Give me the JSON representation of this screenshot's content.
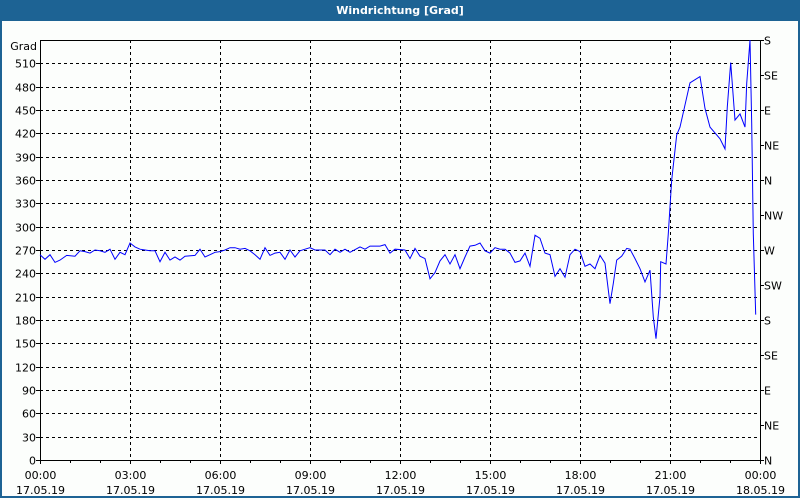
{
  "window": {
    "title": "Windrichtung [Grad]"
  },
  "colors": {
    "titlebar": "#1d6394",
    "line": "#0000ff",
    "grid": "#000000"
  },
  "chart_data": {
    "type": "line",
    "title": "Windrichtung [Grad]",
    "ylabel": "Grad",
    "ylim": [
      0,
      540
    ],
    "yticks": [
      0,
      30,
      60,
      90,
      120,
      150,
      180,
      210,
      240,
      270,
      300,
      330,
      360,
      390,
      420,
      450,
      480,
      510
    ],
    "right_axis": {
      "ticks": [
        {
          "value": 0,
          "label": "N"
        },
        {
          "value": 45,
          "label": "NE"
        },
        {
          "value": 90,
          "label": "E"
        },
        {
          "value": 135,
          "label": "SE"
        },
        {
          "value": 180,
          "label": "S"
        },
        {
          "value": 225,
          "label": "SW"
        },
        {
          "value": 270,
          "label": "W"
        },
        {
          "value": 315,
          "label": "NW"
        },
        {
          "value": 360,
          "label": "N"
        },
        {
          "value": 405,
          "label": "NE"
        },
        {
          "value": 450,
          "label": "E"
        },
        {
          "value": 495,
          "label": "SE"
        },
        {
          "value": 540,
          "label": "S"
        }
      ]
    },
    "xlim_hours": [
      0,
      24
    ],
    "xticks": [
      {
        "hour": 0,
        "time": "00:00",
        "date": "17.05.19"
      },
      {
        "hour": 3,
        "time": "03:00",
        "date": "17.05.19"
      },
      {
        "hour": 6,
        "time": "06:00",
        "date": "17.05.19"
      },
      {
        "hour": 9,
        "time": "09:00",
        "date": "17.05.19"
      },
      {
        "hour": 12,
        "time": "12:00",
        "date": "17.05.19"
      },
      {
        "hour": 15,
        "time": "15:00",
        "date": "17.05.19"
      },
      {
        "hour": 18,
        "time": "18:00",
        "date": "17.05.19"
      },
      {
        "hour": 21,
        "time": "21:00",
        "date": "17.05.19"
      },
      {
        "hour": 24,
        "time": "00:00",
        "date": "18.05.19"
      }
    ],
    "grid": true,
    "series": [
      {
        "points": [
          [
            0,
            264
          ],
          [
            0.167,
            258
          ],
          [
            0.333,
            264
          ],
          [
            0.5,
            254
          ],
          [
            0.667,
            257
          ],
          [
            0.889,
            263
          ],
          [
            1.167,
            262
          ],
          [
            1.333,
            269
          ],
          [
            1.5,
            268
          ],
          [
            1.667,
            266
          ],
          [
            1.833,
            270
          ],
          [
            2.0,
            269
          ],
          [
            2.167,
            267
          ],
          [
            2.333,
            271
          ],
          [
            2.5,
            258
          ],
          [
            2.667,
            267
          ],
          [
            2.833,
            264
          ],
          [
            3.0,
            279
          ],
          [
            3.167,
            274
          ],
          [
            3.333,
            271
          ],
          [
            3.5,
            270
          ],
          [
            3.667,
            269
          ],
          [
            3.833,
            269
          ],
          [
            4.0,
            255
          ],
          [
            4.167,
            267
          ],
          [
            4.333,
            257
          ],
          [
            4.5,
            261
          ],
          [
            4.667,
            257
          ],
          [
            4.833,
            262
          ],
          [
            5.167,
            263
          ],
          [
            5.333,
            271
          ],
          [
            5.5,
            261
          ],
          [
            5.667,
            264
          ],
          [
            5.833,
            267
          ],
          [
            6.0,
            268
          ],
          [
            6.167,
            270
          ],
          [
            6.333,
            273
          ],
          [
            6.5,
            273
          ],
          [
            6.667,
            271
          ],
          [
            6.833,
            272
          ],
          [
            7.0,
            269
          ],
          [
            7.167,
            264
          ],
          [
            7.333,
            258
          ],
          [
            7.5,
            273
          ],
          [
            7.667,
            263
          ],
          [
            7.833,
            266
          ],
          [
            8.0,
            267
          ],
          [
            8.167,
            258
          ],
          [
            8.333,
            270
          ],
          [
            8.5,
            261
          ],
          [
            8.667,
            269
          ],
          [
            8.833,
            271
          ],
          [
            9.0,
            273
          ],
          [
            9.167,
            270
          ],
          [
            9.5,
            270
          ],
          [
            9.667,
            264
          ],
          [
            9.833,
            271
          ],
          [
            10.0,
            267
          ],
          [
            10.167,
            271
          ],
          [
            10.333,
            267
          ],
          [
            10.667,
            274
          ],
          [
            10.833,
            271
          ],
          [
            11.0,
            275
          ],
          [
            11.333,
            275
          ],
          [
            11.5,
            277
          ],
          [
            11.667,
            266
          ],
          [
            11.833,
            271
          ],
          [
            12.167,
            270
          ],
          [
            12.333,
            259
          ],
          [
            12.5,
            272
          ],
          [
            12.667,
            262
          ],
          [
            12.833,
            259
          ],
          [
            13.0,
            233
          ],
          [
            13.167,
            241
          ],
          [
            13.333,
            256
          ],
          [
            13.5,
            264
          ],
          [
            13.667,
            252
          ],
          [
            13.833,
            264
          ],
          [
            14.0,
            246
          ],
          [
            14.167,
            261
          ],
          [
            14.333,
            275
          ],
          [
            14.5,
            276
          ],
          [
            14.667,
            279
          ],
          [
            14.833,
            269
          ],
          [
            15.0,
            266
          ],
          [
            15.167,
            273
          ],
          [
            15.333,
            271
          ],
          [
            15.5,
            271
          ],
          [
            15.667,
            266
          ],
          [
            15.833,
            254
          ],
          [
            16.0,
            256
          ],
          [
            16.167,
            266
          ],
          [
            16.333,
            249
          ],
          [
            16.5,
            289
          ],
          [
            16.667,
            285
          ],
          [
            16.833,
            266
          ],
          [
            17.0,
            264
          ],
          [
            17.167,
            236
          ],
          [
            17.333,
            246
          ],
          [
            17.5,
            235
          ],
          [
            17.667,
            264
          ],
          [
            17.833,
            271
          ],
          [
            18.0,
            268
          ],
          [
            18.167,
            249
          ],
          [
            18.333,
            252
          ],
          [
            18.5,
            246
          ],
          [
            18.667,
            263
          ],
          [
            18.833,
            253
          ],
          [
            19.0,
            201
          ],
          [
            19.111,
            227
          ],
          [
            19.222,
            257
          ],
          [
            19.389,
            262
          ],
          [
            19.556,
            272
          ],
          [
            19.667,
            271
          ],
          [
            19.833,
            259
          ],
          [
            20.0,
            246
          ],
          [
            20.167,
            229
          ],
          [
            20.333,
            244
          ],
          [
            20.444,
            184
          ],
          [
            20.533,
            156
          ],
          [
            20.667,
            210
          ],
          [
            20.689,
            255
          ],
          [
            20.867,
            252
          ],
          [
            20.944,
            291
          ],
          [
            21.056,
            360
          ],
          [
            21.222,
            418
          ],
          [
            21.333,
            428
          ],
          [
            21.667,
            485
          ],
          [
            22.0,
            493
          ],
          [
            22.167,
            452
          ],
          [
            22.333,
            428
          ],
          [
            22.667,
            413
          ],
          [
            22.833,
            400
          ],
          [
            22.911,
            454
          ],
          [
            23.022,
            511
          ],
          [
            23.167,
            437
          ],
          [
            23.333,
            445
          ],
          [
            23.5,
            428
          ],
          [
            23.556,
            484
          ],
          [
            23.667,
            540
          ],
          [
            23.722,
            433
          ],
          [
            23.778,
            291
          ],
          [
            23.856,
            187
          ]
        ]
      }
    ]
  }
}
